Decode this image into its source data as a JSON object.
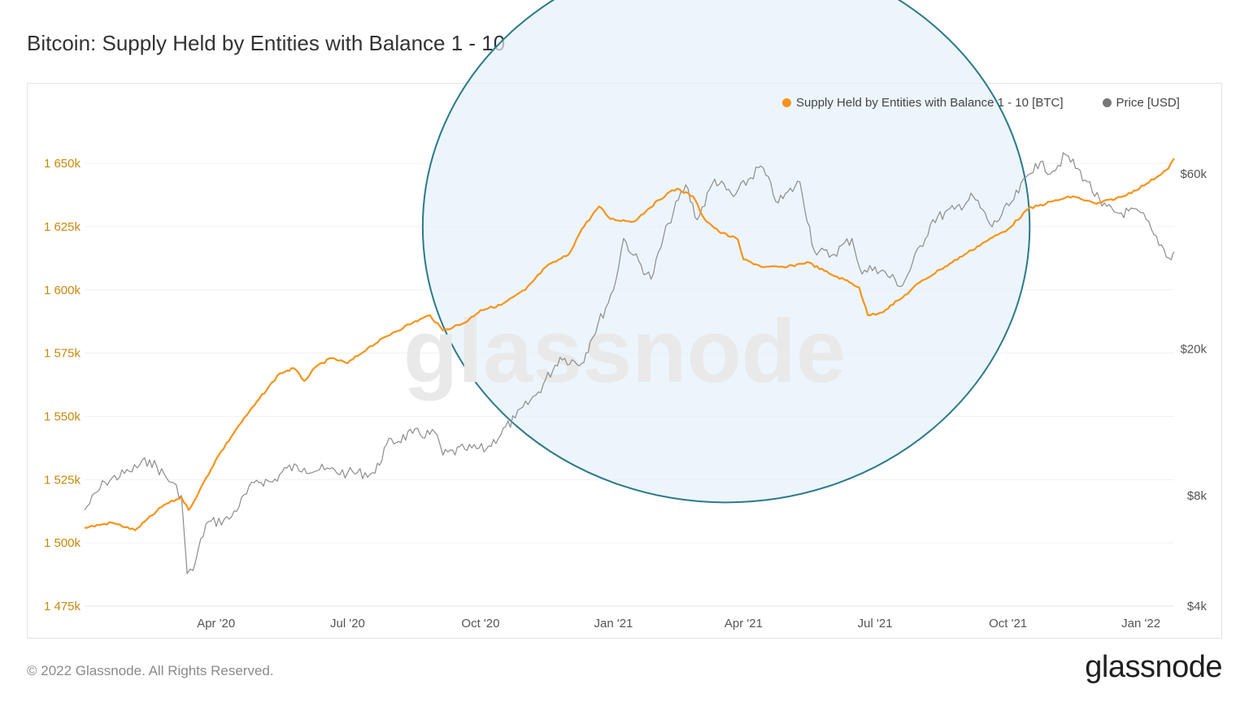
{
  "title": "Bitcoin: Supply Held by Entities with Balance 1 - 10",
  "footer": {
    "copyright": "© 2022 Glassnode. All Rights Reserved.",
    "logo": "glassnode"
  },
  "watermark": "glassnode",
  "colors": {
    "supply": "#f7931a",
    "price": "#8c8c8c",
    "circle_stroke": "#2a7a8c",
    "circle_fill": "#e6f1fb",
    "left_axis_text": "#c9870c"
  },
  "chart_data": {
    "type": "line",
    "title": "Bitcoin: Supply Held by Entities with Balance 1 - 10",
    "x_range": [
      "2020-01-01",
      "2022-01-24"
    ],
    "x_ticks": [
      {
        "date": "2020-04-01",
        "label": "Apr '20"
      },
      {
        "date": "2020-07-01",
        "label": "Jul '20"
      },
      {
        "date": "2020-10-01",
        "label": "Oct '20"
      },
      {
        "date": "2021-01-01",
        "label": "Jan '21"
      },
      {
        "date": "2021-04-01",
        "label": "Apr '21"
      },
      {
        "date": "2021-07-01",
        "label": "Jul '21"
      },
      {
        "date": "2021-10-01",
        "label": "Oct '21"
      },
      {
        "date": "2022-01-01",
        "label": "Jan '22"
      }
    ],
    "left_axis": {
      "scale": "linear",
      "ylim": [
        1475000,
        1660000
      ],
      "ticks": [
        {
          "value": 1650000,
          "label": "1 650k"
        },
        {
          "value": 1625000,
          "label": "1 625k"
        },
        {
          "value": 1600000,
          "label": "1 600k"
        },
        {
          "value": 1575000,
          "label": "1 575k"
        },
        {
          "value": 1550000,
          "label": "1 550k"
        },
        {
          "value": 1525000,
          "label": "1 525k"
        },
        {
          "value": 1500000,
          "label": "1 500k"
        },
        {
          "value": 1475000,
          "label": "1 475k"
        }
      ]
    },
    "right_axis": {
      "scale": "log",
      "ylim": [
        4000,
        75000
      ],
      "ticks": [
        {
          "value": 60000,
          "label": "$60k"
        },
        {
          "value": 20000,
          "label": "$20k"
        },
        {
          "value": 8000,
          "label": "$8k"
        },
        {
          "value": 4000,
          "label": "$4k"
        }
      ]
    },
    "legend_position": "top-right",
    "grid": true,
    "series": [
      {
        "name": "Supply Held by Entities with Balance 1 - 10 [BTC]",
        "axis": "left",
        "points": [
          [
            "2020-01-01",
            1506000
          ],
          [
            "2020-01-20",
            1508000
          ],
          [
            "2020-02-05",
            1505000
          ],
          [
            "2020-02-25",
            1515000
          ],
          [
            "2020-03-08",
            1518000
          ],
          [
            "2020-03-13",
            1513000
          ],
          [
            "2020-03-20",
            1520000
          ],
          [
            "2020-04-01",
            1533000
          ],
          [
            "2020-04-15",
            1545000
          ],
          [
            "2020-05-01",
            1557000
          ],
          [
            "2020-05-15",
            1567000
          ],
          [
            "2020-05-25",
            1569000
          ],
          [
            "2020-06-01",
            1564000
          ],
          [
            "2020-06-10",
            1570000
          ],
          [
            "2020-06-20",
            1573000
          ],
          [
            "2020-07-01",
            1571000
          ],
          [
            "2020-07-15",
            1577000
          ],
          [
            "2020-08-01",
            1583000
          ],
          [
            "2020-08-15",
            1587000
          ],
          [
            "2020-08-27",
            1590000
          ],
          [
            "2020-09-05",
            1584000
          ],
          [
            "2020-09-20",
            1587000
          ],
          [
            "2020-10-01",
            1592000
          ],
          [
            "2020-10-15",
            1594000
          ],
          [
            "2020-11-01",
            1600000
          ],
          [
            "2020-11-15",
            1609000
          ],
          [
            "2020-12-01",
            1614000
          ],
          [
            "2020-12-10",
            1624000
          ],
          [
            "2020-12-22",
            1633000
          ],
          [
            "2020-12-30",
            1628000
          ],
          [
            "2021-01-15",
            1627000
          ],
          [
            "2021-01-25",
            1632000
          ],
          [
            "2021-02-07",
            1638000
          ],
          [
            "2021-02-14",
            1640000
          ],
          [
            "2021-02-25",
            1637000
          ],
          [
            "2021-03-05",
            1628000
          ],
          [
            "2021-03-15",
            1623000
          ],
          [
            "2021-03-28",
            1620000
          ],
          [
            "2021-04-01",
            1612000
          ],
          [
            "2021-04-15",
            1609000
          ],
          [
            "2021-05-01",
            1609000
          ],
          [
            "2021-05-15",
            1611000
          ],
          [
            "2021-06-01",
            1606000
          ],
          [
            "2021-06-10",
            1604000
          ],
          [
            "2021-06-20",
            1601000
          ],
          [
            "2021-06-26",
            1590000
          ],
          [
            "2021-07-05",
            1591000
          ],
          [
            "2021-07-20",
            1597000
          ],
          [
            "2021-08-01",
            1603000
          ],
          [
            "2021-08-15",
            1608000
          ],
          [
            "2021-09-01",
            1614000
          ],
          [
            "2021-09-15",
            1619000
          ],
          [
            "2021-10-01",
            1624000
          ],
          [
            "2021-10-15",
            1632000
          ],
          [
            "2021-11-01",
            1635000
          ],
          [
            "2021-11-15",
            1637000
          ],
          [
            "2021-12-01",
            1634000
          ],
          [
            "2021-12-20",
            1637000
          ],
          [
            "2022-01-05",
            1642000
          ],
          [
            "2022-01-20",
            1648000
          ],
          [
            "2022-01-24",
            1652000
          ]
        ]
      },
      {
        "name": "Price [USD]",
        "axis": "right",
        "points": [
          [
            "2020-01-01",
            7300
          ],
          [
            "2020-01-15",
            8700
          ],
          [
            "2020-02-01",
            9300
          ],
          [
            "2020-02-15",
            10000
          ],
          [
            "2020-03-01",
            8700
          ],
          [
            "2020-03-08",
            8000
          ],
          [
            "2020-03-12",
            4900
          ],
          [
            "2020-03-16",
            5000
          ],
          [
            "2020-03-25",
            6700
          ],
          [
            "2020-04-10",
            6900
          ],
          [
            "2020-04-29",
            8800
          ],
          [
            "2020-05-10",
            8700
          ],
          [
            "2020-05-20",
            9500
          ],
          [
            "2020-06-01",
            9500
          ],
          [
            "2020-06-15",
            9400
          ],
          [
            "2020-07-01",
            9200
          ],
          [
            "2020-07-20",
            9200
          ],
          [
            "2020-07-28",
            11000
          ],
          [
            "2020-08-15",
            11800
          ],
          [
            "2020-09-01",
            11700
          ],
          [
            "2020-09-05",
            10300
          ],
          [
            "2020-09-20",
            10700
          ],
          [
            "2020-10-05",
            10700
          ],
          [
            "2020-10-25",
            13000
          ],
          [
            "2020-11-10",
            15300
          ],
          [
            "2020-11-25",
            19000
          ],
          [
            "2020-12-10",
            18300
          ],
          [
            "2020-12-16",
            21000
          ],
          [
            "2021-01-01",
            29000
          ],
          [
            "2021-01-08",
            40000
          ],
          [
            "2021-01-15",
            36000
          ],
          [
            "2021-01-27",
            31000
          ],
          [
            "2021-02-08",
            44000
          ],
          [
            "2021-02-20",
            56000
          ],
          [
            "2021-02-28",
            45000
          ],
          [
            "2021-03-12",
            58000
          ],
          [
            "2021-03-25",
            52000
          ],
          [
            "2021-04-13",
            63000
          ],
          [
            "2021-04-25",
            50000
          ],
          [
            "2021-05-10",
            57000
          ],
          [
            "2021-05-20",
            37000
          ],
          [
            "2021-06-01",
            36000
          ],
          [
            "2021-06-15",
            40000
          ],
          [
            "2021-06-22",
            32000
          ],
          [
            "2021-07-01",
            33500
          ],
          [
            "2021-07-20",
            29800
          ],
          [
            "2021-08-10",
            45000
          ],
          [
            "2021-08-25",
            48000
          ],
          [
            "2021-09-07",
            52000
          ],
          [
            "2021-09-20",
            43000
          ],
          [
            "2021-10-05",
            51000
          ],
          [
            "2021-10-20",
            64000
          ],
          [
            "2021-11-01",
            61000
          ],
          [
            "2021-11-10",
            67500
          ],
          [
            "2021-11-25",
            57000
          ],
          [
            "2021-12-05",
            49000
          ],
          [
            "2021-12-15",
            47000
          ],
          [
            "2022-01-01",
            47000
          ],
          [
            "2022-01-10",
            41000
          ],
          [
            "2022-01-22",
            35000
          ],
          [
            "2022-01-24",
            36800
          ]
        ]
      }
    ],
    "annotations": [
      {
        "type": "ellipse",
        "x_center": "2021-03-20",
        "y_center_left": 1625000,
        "x_span_days": 210,
        "y_span_left": 109000
      }
    ]
  }
}
